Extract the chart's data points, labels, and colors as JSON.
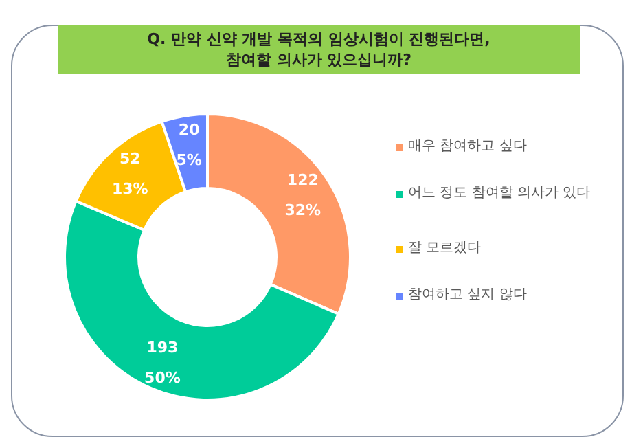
{
  "chart_data": {
    "type": "donut",
    "title": "Q. 만약 신약 개발 목적의 임상시험이 진행된다면,\n참여할 의사가 있으십니까?",
    "categories": [
      "매우 참여하고 싶다",
      "어느 정도 참여할 의사가 있다",
      "잘 모르겠다",
      "참여하고 싶지 않다"
    ],
    "values": [
      122,
      193,
      52,
      20
    ],
    "colors": [
      "#ff9966",
      "#00cc99",
      "#ffc000",
      "#6685ff"
    ],
    "value_labels": [
      "122\n32%",
      "193\n50%",
      "52\n13%",
      "20\n5%"
    ],
    "legend": "right"
  }
}
